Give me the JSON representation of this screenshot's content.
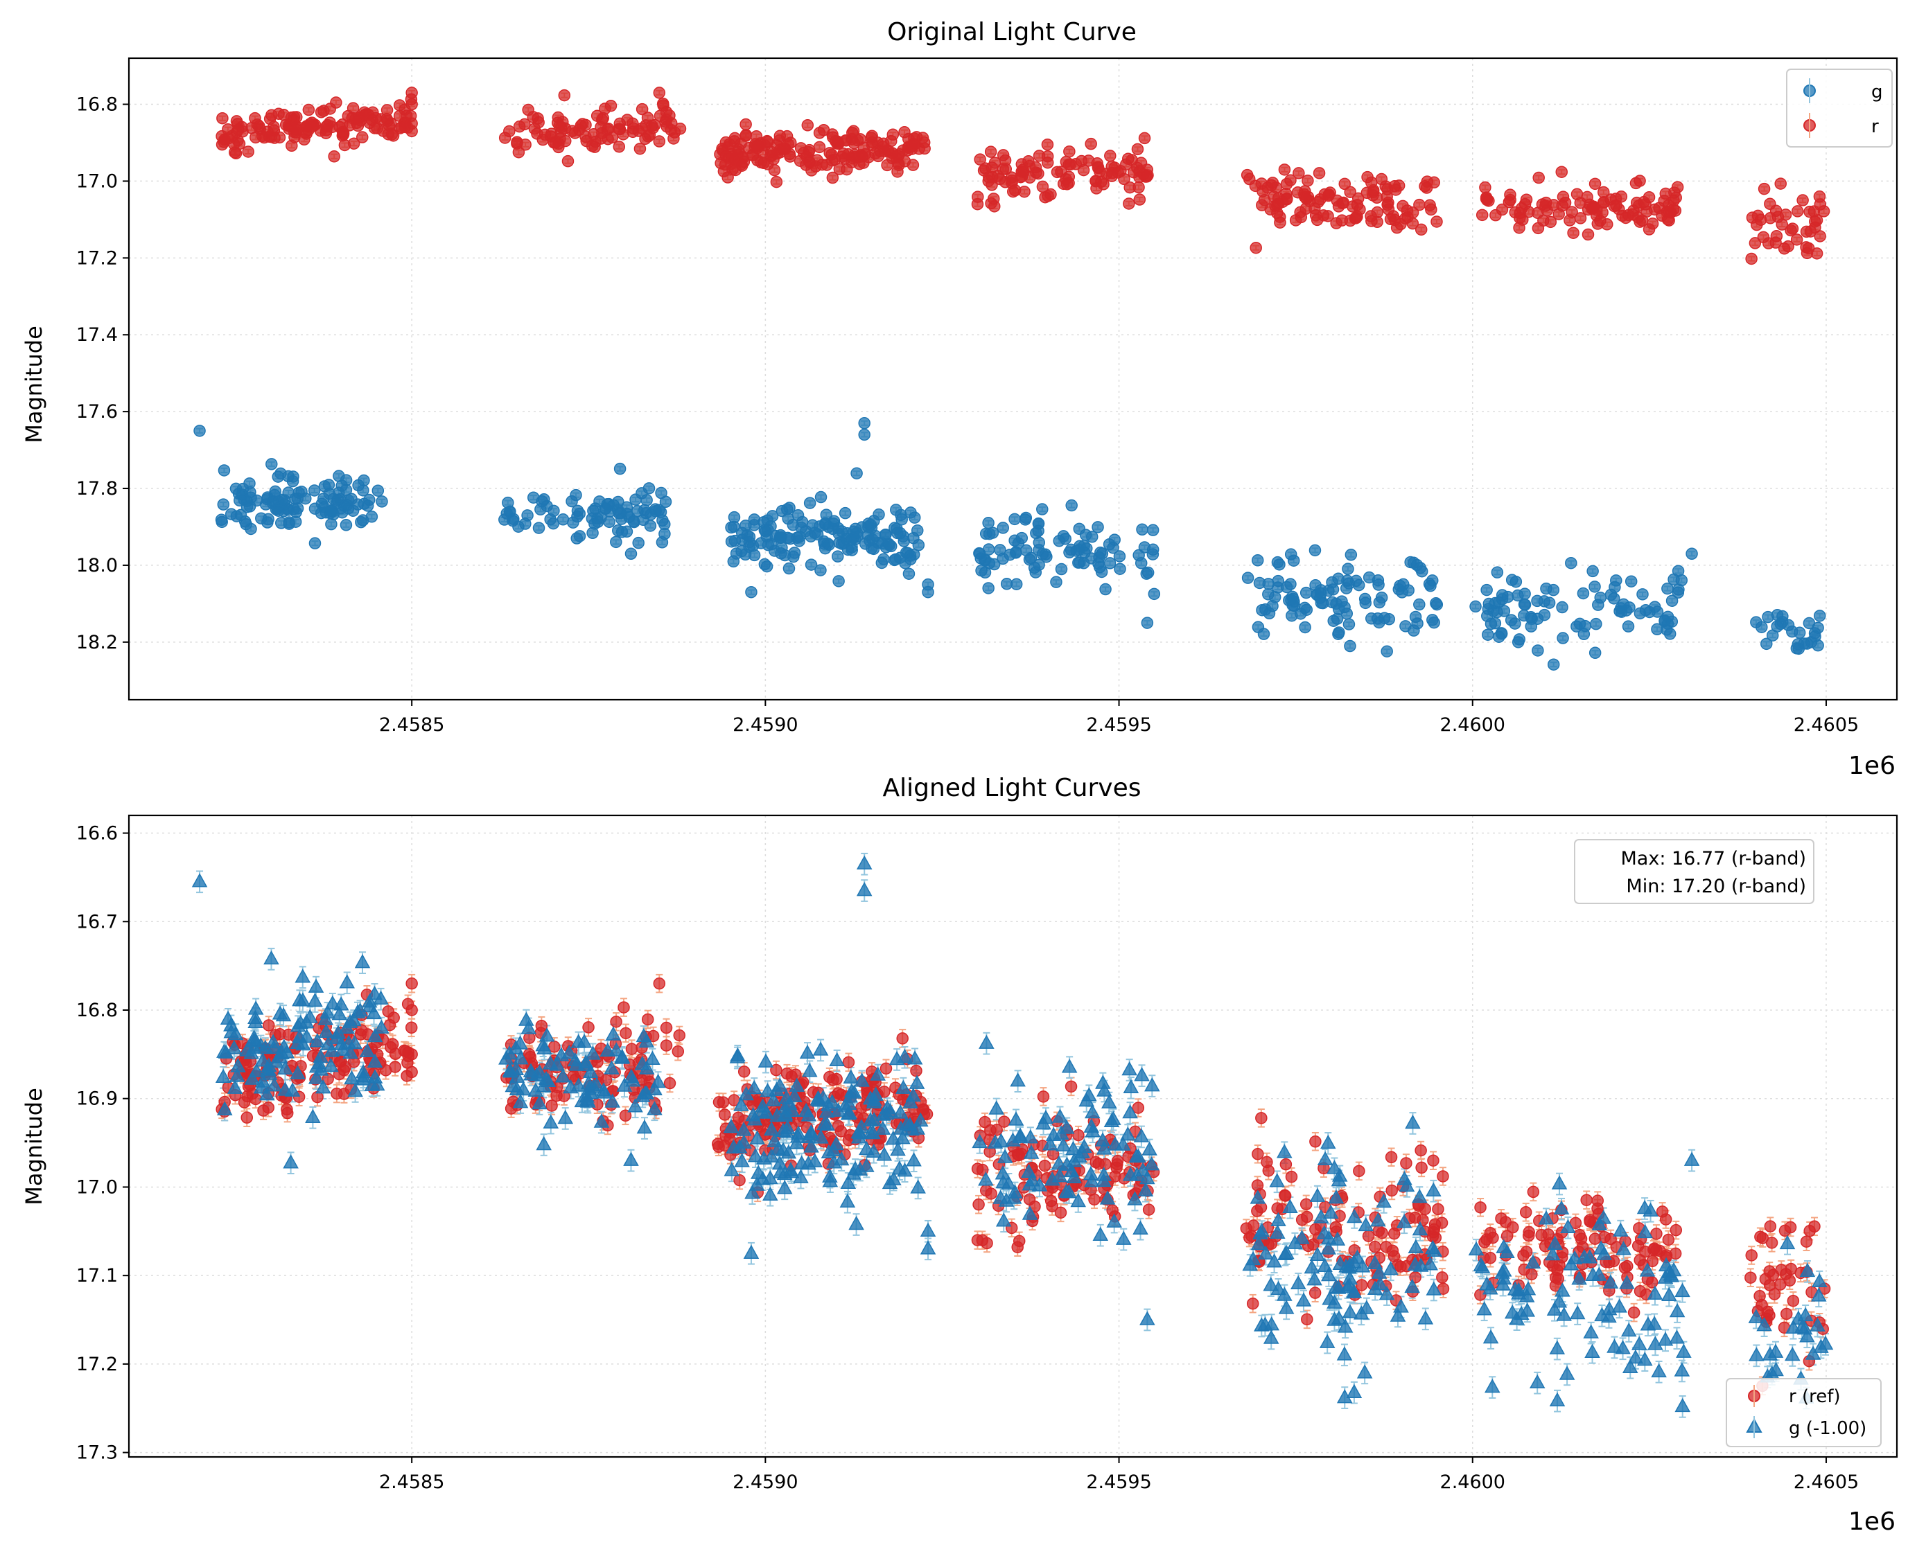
{
  "colors": {
    "r_face": "#d62728",
    "g_face": "#1f77b4",
    "r_err": "#f4a582",
    "g_err": "#92c5de",
    "grid": "#dddddd"
  },
  "chart_data": [
    {
      "type": "scatter",
      "title": "Original Light Curve",
      "xlabel": "",
      "ylabel": "Magnitude",
      "x_offset_label": "1e6",
      "xlim": [
        2.4581,
        2.4606
      ],
      "ylim": [
        18.35,
        16.68
      ],
      "y_inverted": true,
      "xticks": [
        2.4585,
        2.459,
        2.4595,
        2.46,
        2.4605
      ],
      "xtick_labels": [
        "2.4585",
        "2.4590",
        "2.4595",
        "2.4600",
        "2.4605"
      ],
      "yticks": [
        16.8,
        17.0,
        17.2,
        17.4,
        17.6,
        17.8,
        18.0,
        18.2
      ],
      "ytick_labels": [
        "16.8",
        "17.0",
        "17.2",
        "17.4",
        "17.6",
        "17.8",
        "18.0",
        "18.2"
      ],
      "grid": true,
      "legend": {
        "position": "top-right",
        "entries": [
          "g",
          "r"
        ]
      },
      "series": [
        {
          "name": "g",
          "marker": "circle",
          "clusters": [
            {
              "x": [
                2.45823,
                2.45846
              ],
              "mag": 17.84,
              "spread": 0.035,
              "slope": -0.02,
              "n": 110
            },
            {
              "x": [
                2.45863,
                2.45886
              ],
              "mag": 17.87,
              "spread": 0.03,
              "slope": 0.0,
              "n": 80
            },
            {
              "x": [
                2.45895,
                2.45922
              ],
              "mag": 17.93,
              "spread": 0.04,
              "slope": -0.01,
              "n": 150
            },
            {
              "x": [
                2.4593,
                2.45955
              ],
              "mag": 17.97,
              "spread": 0.05,
              "slope": 0.0,
              "n": 90
            },
            {
              "x": [
                2.45968,
                2.45995
              ],
              "mag": 18.08,
              "spread": 0.055,
              "slope": 0.02,
              "n": 100
            },
            {
              "x": [
                2.46,
                2.4603
              ],
              "mag": 18.12,
              "spread": 0.05,
              "slope": 0.0,
              "n": 90
            },
            {
              "x": [
                2.4604,
                2.4605
              ],
              "mag": 18.17,
              "spread": 0.04,
              "slope": 0.0,
              "n": 25
            }
          ],
          "points": [
            {
              "x": 2.4582,
              "y": 17.65
            },
            {
              "x": 2.45914,
              "y": 17.63
            },
            {
              "x": 2.45914,
              "y": 17.66
            },
            {
              "x": 2.45898,
              "y": 18.07
            },
            {
              "x": 2.45954,
              "y": 18.15
            },
            {
              "x": 2.45881,
              "y": 17.97
            },
            {
              "x": 2.46031,
              "y": 17.97
            },
            {
              "x": 2.45923,
              "y": 18.05
            },
            {
              "x": 2.45923,
              "y": 18.07
            }
          ]
        },
        {
          "name": "r",
          "marker": "circle",
          "clusters": [
            {
              "x": [
                2.45823,
                2.4585
              ],
              "mag": 16.86,
              "spread": 0.025,
              "slope": -0.04,
              "n": 130
            },
            {
              "x": [
                2.45863,
                2.45888
              ],
              "mag": 16.87,
              "spread": 0.025,
              "slope": -0.02,
              "n": 90
            },
            {
              "x": [
                2.45893,
                2.45923
              ],
              "mag": 16.92,
              "spread": 0.025,
              "slope": -0.02,
              "n": 170
            },
            {
              "x": [
                2.4593,
                2.45955
              ],
              "mag": 16.98,
              "spread": 0.035,
              "slope": 0.0,
              "n": 100
            },
            {
              "x": [
                2.45968,
                2.45996
              ],
              "mag": 17.05,
              "spread": 0.04,
              "slope": 0.03,
              "n": 110
            },
            {
              "x": [
                2.46001,
                2.46029
              ],
              "mag": 17.07,
              "spread": 0.03,
              "slope": 0.0,
              "n": 100
            },
            {
              "x": [
                2.46039,
                2.4605
              ],
              "mag": 17.12,
              "spread": 0.05,
              "slope": 0.0,
              "n": 40
            }
          ],
          "points": [
            {
              "x": 2.4585,
              "y": 16.77
            },
            {
              "x": 2.4585,
              "y": 16.8
            },
            {
              "x": 2.45885,
              "y": 16.77
            },
            {
              "x": 2.4585,
              "y": 16.85
            },
            {
              "x": 2.4585,
              "y": 16.87
            },
            {
              "x": 2.4593,
              "y": 17.06
            },
            {
              "x": 2.45886,
              "y": 16.82
            },
            {
              "x": 2.45886,
              "y": 16.84
            }
          ]
        }
      ]
    },
    {
      "type": "scatter",
      "title": "Aligned Light Curves",
      "xlabel": "",
      "ylabel": "Magnitude",
      "x_offset_label": "1e6",
      "xlim": [
        2.4581,
        2.4606
      ],
      "ylim": [
        17.305,
        16.58
      ],
      "y_inverted": true,
      "xticks": [
        2.4585,
        2.459,
        2.4595,
        2.46,
        2.4605
      ],
      "xtick_labels": [
        "2.4585",
        "2.4590",
        "2.4595",
        "2.4600",
        "2.4605"
      ],
      "yticks": [
        16.6,
        16.7,
        16.8,
        16.9,
        17.0,
        17.1,
        17.2,
        17.3
      ],
      "ytick_labels": [
        "16.6",
        "16.7",
        "16.8",
        "16.9",
        "17.0",
        "17.1",
        "17.2",
        "17.3"
      ],
      "grid": true,
      "legend": {
        "position": "lower-right",
        "entries": [
          "r (ref)",
          "g (-1.00)"
        ]
      },
      "annotation": [
        "Max: 16.77 (r-band)",
        "Min: 17.20 (r-band)"
      ],
      "g_shift": -1.0,
      "series": [
        {
          "name": "r (ref)",
          "marker": "circle",
          "clusters": [
            {
              "x": [
                2.45823,
                2.4585
              ],
              "mag": 16.86,
              "spread": 0.025,
              "slope": -0.04,
              "n": 130
            },
            {
              "x": [
                2.45863,
                2.45888
              ],
              "mag": 16.87,
              "spread": 0.025,
              "slope": -0.02,
              "n": 90
            },
            {
              "x": [
                2.45893,
                2.45923
              ],
              "mag": 16.92,
              "spread": 0.025,
              "slope": -0.02,
              "n": 170
            },
            {
              "x": [
                2.4593,
                2.45955
              ],
              "mag": 16.98,
              "spread": 0.035,
              "slope": 0.0,
              "n": 100
            },
            {
              "x": [
                2.45968,
                2.45996
              ],
              "mag": 17.05,
              "spread": 0.04,
              "slope": 0.03,
              "n": 110
            },
            {
              "x": [
                2.46001,
                2.46029
              ],
              "mag": 17.07,
              "spread": 0.03,
              "slope": 0.0,
              "n": 100
            },
            {
              "x": [
                2.46039,
                2.4605
              ],
              "mag": 17.12,
              "spread": 0.05,
              "slope": 0.0,
              "n": 40
            }
          ],
          "points": [
            {
              "x": 2.4585,
              "y": 16.77
            },
            {
              "x": 2.4585,
              "y": 16.8
            },
            {
              "x": 2.45885,
              "y": 16.77
            },
            {
              "x": 2.4585,
              "y": 16.85
            },
            {
              "x": 2.4585,
              "y": 16.87
            },
            {
              "x": 2.4593,
              "y": 17.06
            },
            {
              "x": 2.45886,
              "y": 16.82
            },
            {
              "x": 2.45886,
              "y": 16.84
            }
          ]
        },
        {
          "name": "g (-1.00)",
          "marker": "triangle",
          "clusters": [
            {
              "x": [
                2.45823,
                2.45846
              ],
              "mag": 16.84,
              "spread": 0.035,
              "slope": -0.02,
              "n": 110
            },
            {
              "x": [
                2.45863,
                2.45886
              ],
              "mag": 16.87,
              "spread": 0.03,
              "slope": 0.0,
              "n": 80
            },
            {
              "x": [
                2.45895,
                2.45922
              ],
              "mag": 16.93,
              "spread": 0.04,
              "slope": -0.01,
              "n": 150
            },
            {
              "x": [
                2.4593,
                2.45955
              ],
              "mag": 16.97,
              "spread": 0.05,
              "slope": 0.0,
              "n": 90
            },
            {
              "x": [
                2.45968,
                2.45995
              ],
              "mag": 17.08,
              "spread": 0.055,
              "slope": 0.02,
              "n": 100
            },
            {
              "x": [
                2.46,
                2.4603
              ],
              "mag": 17.12,
              "spread": 0.05,
              "slope": 0.0,
              "n": 90
            },
            {
              "x": [
                2.4604,
                2.4605
              ],
              "mag": 17.17,
              "spread": 0.04,
              "slope": 0.0,
              "n": 25
            }
          ],
          "points": [
            {
              "x": 2.4582,
              "y": 16.655
            },
            {
              "x": 2.45914,
              "y": 16.635
            },
            {
              "x": 2.45914,
              "y": 16.665
            },
            {
              "x": 2.45898,
              "y": 17.075
            },
            {
              "x": 2.45954,
              "y": 17.15
            },
            {
              "x": 2.45881,
              "y": 16.97
            },
            {
              "x": 2.46031,
              "y": 16.97
            },
            {
              "x": 2.45923,
              "y": 17.05
            },
            {
              "x": 2.45923,
              "y": 17.07
            }
          ]
        }
      ]
    }
  ]
}
